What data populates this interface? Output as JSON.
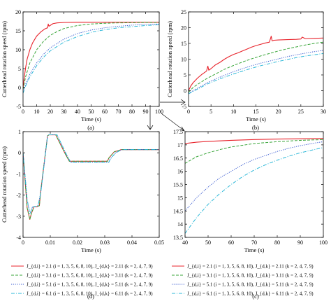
{
  "colors": {
    "s1": "#e8242c",
    "s2": "#3aa63a",
    "s3": "#3a5bd0",
    "s4": "#2cb8d8"
  },
  "legend": [
    "J_{d,i} = 2.1 (i = 1, 3, 5, 6, 8, 10), J_{d,k} = 2.11 (k = 2, 4, 7, 9)",
    "J_{d,i} = 3.1 (i = 1, 3, 5, 6, 8, 10), J_{d,k} = 3.11 (k = 2, 4, 7, 9)",
    "J_{d,i} = 5.1 (i = 1, 3, 5, 6, 8, 10), J_{d,k} = 5.11 (k = 2, 4, 7, 9)",
    "J_{d,i} = 6.1 (i = 1, 3, 5, 6, 8, 10), J_{d,k} = 6.11 (k = 2, 4, 7, 9)"
  ],
  "chart_data": [
    {
      "id": "a",
      "type": "line",
      "label": "(a)",
      "xlabel": "Time (s)",
      "ylabel": "Cutterhead rotation speed (rpm)",
      "xlim": [
        0,
        100
      ],
      "ylim": [
        -5,
        20
      ],
      "xticks": [
        0,
        10,
        20,
        30,
        40,
        50,
        60,
        70,
        80,
        90,
        100
      ],
      "yticks": [
        -5,
        0,
        5,
        10,
        15,
        20
      ],
      "series": [
        {
          "x": [
            0,
            1,
            2,
            3,
            5,
            7,
            10,
            13,
            16,
            18,
            18.5,
            19,
            22,
            25,
            30,
            40,
            50,
            60,
            70,
            80,
            90,
            100
          ],
          "y": [
            0,
            3,
            5.5,
            7.5,
            10,
            11.8,
            13.6,
            14.7,
            15.5,
            15.8,
            16.8,
            16.2,
            16.9,
            17.1,
            17.2,
            17.25,
            17.25,
            17.25,
            17.25,
            17.25,
            17.25,
            17.25
          ]
        },
        {
          "x": [
            0,
            2,
            5,
            10,
            15,
            20,
            25,
            30,
            40,
            50,
            60,
            70,
            80,
            90,
            100
          ],
          "y": [
            -0.5,
            3,
            6.5,
            10,
            12.2,
            13.8,
            14.8,
            15.6,
            16.4,
            16.8,
            17,
            17.1,
            17.15,
            17.2,
            17.2
          ]
        },
        {
          "x": [
            0,
            2,
            5,
            10,
            15,
            20,
            30,
            40,
            50,
            60,
            70,
            80,
            90,
            100
          ],
          "y": [
            -1,
            1,
            3.5,
            6.5,
            8.8,
            10.5,
            12.8,
            14.3,
            15.2,
            15.8,
            16.2,
            16.5,
            16.7,
            16.8
          ]
        },
        {
          "x": [
            0,
            2,
            5,
            10,
            15,
            20,
            30,
            40,
            50,
            60,
            70,
            80,
            90,
            100
          ],
          "y": [
            -1.5,
            0.5,
            2.8,
            5.8,
            8,
            9.7,
            12,
            13.5,
            14.6,
            15.3,
            15.8,
            16.1,
            16.4,
            16.6
          ]
        }
      ]
    },
    {
      "id": "b",
      "type": "line",
      "label": "(b)",
      "xlabel": "Time (s)",
      "ylabel": "Cutterhead rotation speed (rpm)",
      "xlim": [
        0,
        30
      ],
      "ylim": [
        -5,
        25
      ],
      "xticks": [
        0,
        5,
        10,
        15,
        20,
        25,
        30
      ],
      "yticks": [
        -5,
        0,
        5,
        10,
        15,
        20,
        25
      ],
      "series": [
        {
          "x": [
            0,
            0.5,
            1,
            2,
            3,
            4,
            4.3,
            4.5,
            5,
            6,
            7,
            8,
            9,
            10,
            11,
            12,
            13,
            14,
            15,
            16,
            17,
            18,
            18.4,
            18.6,
            19,
            20,
            22,
            24,
            25,
            25.3,
            26,
            28,
            30
          ],
          "y": [
            0,
            1.5,
            2.5,
            4,
            5.2,
            6.2,
            7.8,
            6.5,
            7,
            8.2,
            9,
            10,
            10.8,
            11.5,
            12,
            12.6,
            13.2,
            13.8,
            14.3,
            14.7,
            15.1,
            15.4,
            17.3,
            15.8,
            16,
            16.1,
            16.2,
            16.3,
            16.4,
            17,
            16.5,
            16.6,
            16.7
          ]
        },
        {
          "x": [
            0,
            1,
            2,
            4,
            6,
            8,
            10,
            12,
            14,
            16,
            18,
            20,
            22,
            24,
            26,
            28,
            30
          ],
          "y": [
            -0.5,
            1,
            2,
            3.8,
            5.3,
            6.8,
            8,
            9.1,
            10.1,
            11,
            11.8,
            12.6,
            13.3,
            13.9,
            14.5,
            15,
            15.4
          ]
        },
        {
          "x": [
            0,
            2,
            4,
            6,
            8,
            10,
            12,
            14,
            16,
            18,
            20,
            22,
            24,
            26,
            28,
            30
          ],
          "y": [
            -0.8,
            0.8,
            2.4,
            3.7,
            4.9,
            6,
            7,
            7.9,
            8.7,
            9.4,
            10.1,
            10.8,
            11.4,
            11.9,
            12.4,
            12.8
          ]
        },
        {
          "x": [
            0,
            2,
            4,
            6,
            8,
            10,
            12,
            14,
            16,
            18,
            20,
            22,
            24,
            26,
            28,
            30
          ],
          "y": [
            -1,
            0.5,
            2,
            3.2,
            4.3,
            5.3,
            6.2,
            7.1,
            7.9,
            8.6,
            9.3,
            9.9,
            10.5,
            11,
            11.4,
            11.8
          ]
        }
      ]
    },
    {
      "id": "d",
      "type": "line",
      "label": "(d)",
      "xlabel": "Time (s)",
      "ylabel": "Cutterhead rotation speed (rpm)",
      "xlim": [
        0,
        0.05
      ],
      "ylim": [
        -4,
        1
      ],
      "xticks": [
        0,
        0.01,
        0.02,
        0.03,
        0.04,
        0.05
      ],
      "yticks": [
        -4,
        -3,
        -2,
        -1,
        0,
        1
      ],
      "series": [
        {
          "x": [
            0,
            0.0015,
            0.0025,
            0.003,
            0.004,
            0.005,
            0.006,
            0.0065,
            0.009,
            0.0095,
            0.0105,
            0.012,
            0.0155,
            0.017,
            0.0185,
            0.031,
            0.0315,
            0.0335,
            0.035,
            0.036,
            0.05
          ],
          "y": [
            0,
            -2.6,
            -3.15,
            -2.9,
            -2.55,
            -2.55,
            -2.5,
            -1.8,
            0.8,
            0.85,
            0.85,
            0.85,
            -0.05,
            -0.4,
            -0.4,
            -0.4,
            -0.25,
            0.05,
            0.1,
            0.15,
            0.15
          ]
        },
        {
          "x": [
            0,
            0.0015,
            0.0025,
            0.003,
            0.004,
            0.005,
            0.006,
            0.0065,
            0.009,
            0.0095,
            0.0105,
            0.012,
            0.0155,
            0.017,
            0.0185,
            0.031,
            0.0315,
            0.0335,
            0.035,
            0.036,
            0.05
          ],
          "y": [
            0,
            -2.6,
            -3.15,
            -2.9,
            -2.55,
            -2.55,
            -2.5,
            -1.8,
            0.8,
            0.85,
            0.85,
            0.85,
            -0.05,
            -0.4,
            -0.4,
            -0.4,
            -0.25,
            0.05,
            0.1,
            0.15,
            0.15
          ]
        },
        {
          "x": [
            0,
            0.0015,
            0.0025,
            0.0035,
            0.0045,
            0.0055,
            0.0065,
            0.009,
            0.0095,
            0.0105,
            0.0125,
            0.016,
            0.0175,
            0.019,
            0.0315,
            0.032,
            0.034,
            0.0355,
            0.0365,
            0.05
          ],
          "y": [
            0,
            -2.2,
            -2.9,
            -2.55,
            -2.55,
            -2.5,
            -1.9,
            0.8,
            0.85,
            0.85,
            0.85,
            -0.1,
            -0.45,
            -0.45,
            -0.45,
            -0.3,
            0,
            0.1,
            0.15,
            0.15
          ]
        },
        {
          "x": [
            0,
            0.0015,
            0.0025,
            0.0035,
            0.0045,
            0.0055,
            0.0065,
            0.009,
            0.0095,
            0.0105,
            0.0125,
            0.016,
            0.0175,
            0.019,
            0.0315,
            0.032,
            0.034,
            0.0355,
            0.0365,
            0.05
          ],
          "y": [
            0,
            -2.2,
            -2.9,
            -2.55,
            -2.55,
            -2.5,
            -1.9,
            0.8,
            0.85,
            0.85,
            0.85,
            -0.1,
            -0.45,
            -0.45,
            -0.45,
            -0.3,
            0,
            0.1,
            0.15,
            0.15
          ]
        }
      ]
    },
    {
      "id": "c",
      "type": "line",
      "label": "(c)",
      "xlabel": "Time (s)",
      "ylabel": "",
      "xlim": [
        40,
        100
      ],
      "ylim": [
        13.5,
        17.5
      ],
      "xticks": [
        40,
        50,
        60,
        70,
        80,
        90,
        100
      ],
      "yticks": [
        13.5,
        14,
        14.5,
        15,
        15.5,
        16,
        16.5,
        17,
        17.5
      ],
      "series": [
        {
          "x": [
            40,
            45,
            50,
            60,
            70,
            80,
            90,
            100
          ],
          "y": [
            17.05,
            17.1,
            17.13,
            17.17,
            17.2,
            17.22,
            17.23,
            17.24
          ]
        },
        {
          "x": [
            40,
            45,
            50,
            55,
            60,
            70,
            80,
            90,
            100
          ],
          "y": [
            16.3,
            16.55,
            16.7,
            16.82,
            16.92,
            17.05,
            17.12,
            17.17,
            17.2
          ]
        },
        {
          "x": [
            40,
            45,
            50,
            55,
            60,
            65,
            70,
            75,
            80,
            85,
            90,
            95,
            100
          ],
          "y": [
            14.5,
            15,
            15.4,
            15.75,
            16.0,
            16.25,
            16.45,
            16.6,
            16.75,
            16.87,
            16.97,
            17.05,
            17.12
          ]
        },
        {
          "x": [
            40,
            45,
            50,
            55,
            60,
            65,
            70,
            75,
            80,
            85,
            90,
            95,
            100
          ],
          "y": [
            13.65,
            14.25,
            14.75,
            15.15,
            15.5,
            15.8,
            16.05,
            16.25,
            16.42,
            16.57,
            16.7,
            16.8,
            16.9
          ]
        }
      ]
    }
  ]
}
